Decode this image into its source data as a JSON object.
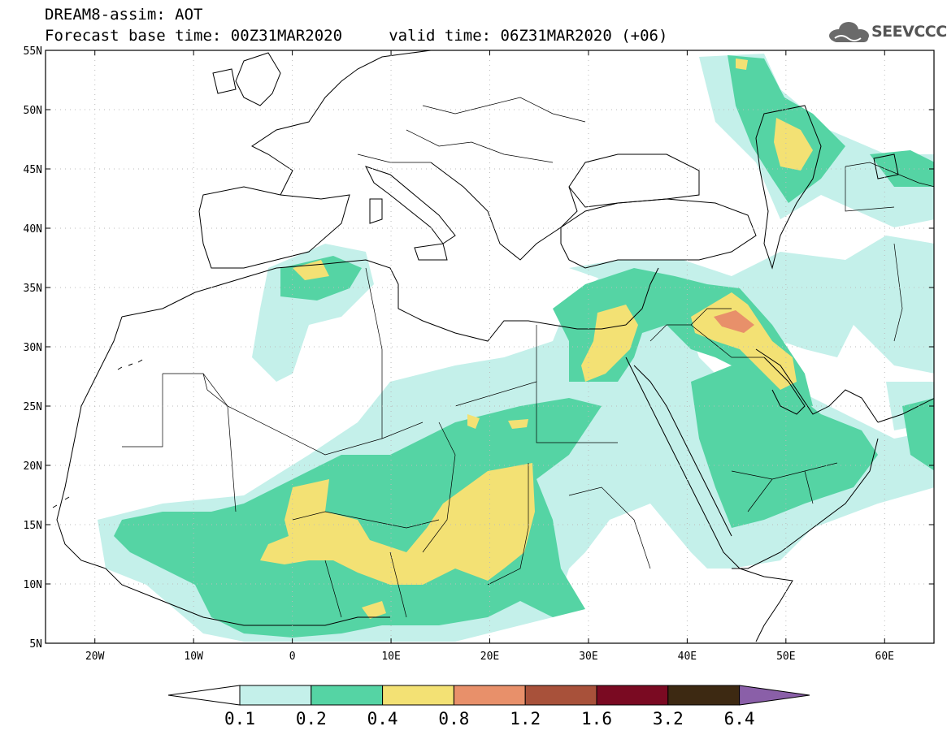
{
  "header": {
    "line1": "DREAM8-assim: AOT",
    "line2": "Forecast base time: 00Z31MAR2020     valid time: 06Z31MAR2020 (+06)"
  },
  "logo": {
    "text": "SEEVCCC",
    "icon": "cloud-icon"
  },
  "map": {
    "lon_range": [
      -25,
      65
    ],
    "lat_range": [
      5,
      55
    ],
    "lat_labels": [
      "55N",
      "50N",
      "45N",
      "40N",
      "35N",
      "30N",
      "25N",
      "20N",
      "15N",
      "10N",
      "5N"
    ],
    "lon_labels": [
      "20W",
      "10W",
      "0",
      "10E",
      "20E",
      "30E",
      "40E",
      "50E",
      "60E"
    ],
    "gridlines": true
  },
  "colorbar": {
    "labels": [
      "0.1",
      "0.2",
      "0.4",
      "0.8",
      "1.2",
      "1.6",
      "3.2",
      "6.4"
    ],
    "colors": [
      "#c4f0ea",
      "#55d4a4",
      "#f3e174",
      "#e8906a",
      "#a8513a",
      "#7a0a22",
      "#3d2912",
      "#8a5fa8"
    ],
    "under_color": "#ffffff",
    "over_color": "#8a5fa8"
  }
}
